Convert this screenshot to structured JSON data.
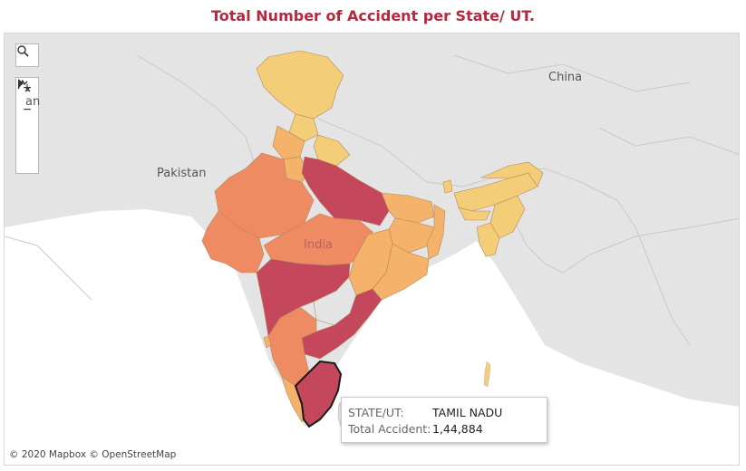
{
  "title": "Total Number of Accident per State/ UT.",
  "map": {
    "place_labels": {
      "china": "China",
      "pakistan": "Pakistan",
      "india": "India",
      "cut_label": "an"
    },
    "colors": {
      "water": "#ffffff",
      "land": "#e4e4e4",
      "border": "#c9c9c9",
      "lowest": "#f3cd77",
      "low": "#f4b26b",
      "mid": "#ee8b63",
      "high": "#d1555f",
      "highest": "#c4475c",
      "highlight_outline": "#1a1a1a"
    },
    "highlighted_state": "TAMIL NADU"
  },
  "controls": {
    "search_icon": "search-icon",
    "zoom_in_label": "+",
    "zoom_out_label": "−",
    "pan_reset_icon": "pin-reset-icon",
    "expand_icon": "play-arrow-icon"
  },
  "tooltip": {
    "state_label": "STATE/UT:",
    "state_value": "TAMIL NADU",
    "total_label": "Total Accident:",
    "total_value": "1,44,884"
  },
  "attribution": "© 2020 Mapbox © OpenStreetMap"
}
